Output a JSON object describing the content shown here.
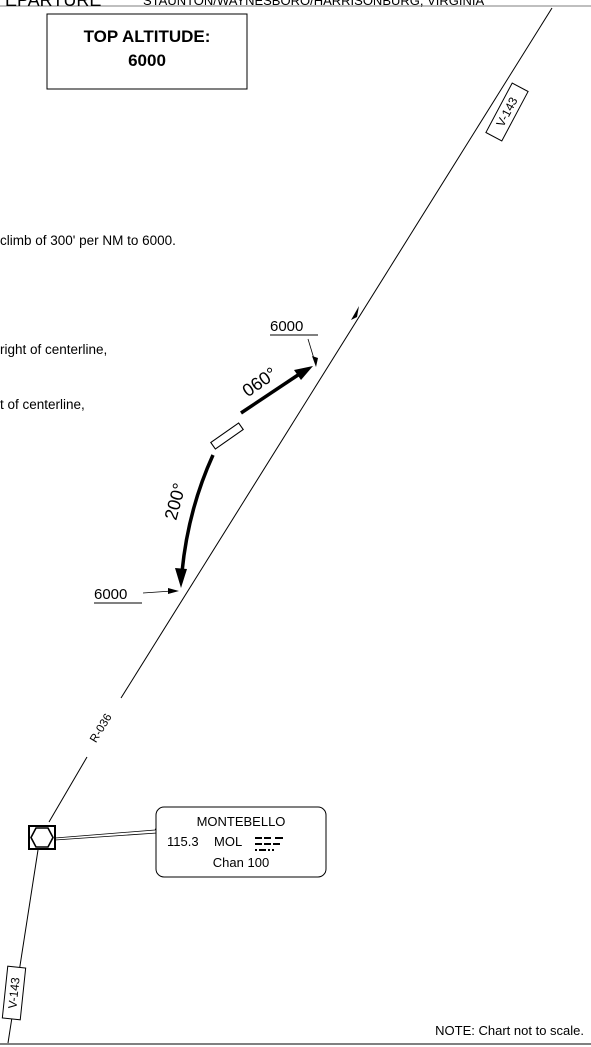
{
  "header": {
    "title_partial": "EPARTURE",
    "location_partial": "STAUNTON/WAYNESBORO/HARRISONBURG, VIRGINIA"
  },
  "top_altitude": {
    "label": "TOP ALTITUDE:",
    "value": "6000"
  },
  "procedure_text": {
    "line1": "climb of 300' per NM to 6000.",
    "line2": "right of centerline,",
    "line3": "t of centerline,"
  },
  "airways": [
    {
      "label": "V-143"
    },
    {
      "label": "V-143"
    }
  ],
  "radial": {
    "label": "R-036"
  },
  "holding": {
    "outbound_course": "060°",
    "inbound_course": "200°"
  },
  "altitudes": {
    "upper": "6000",
    "lower": "6000"
  },
  "navaid": {
    "name": "MONTEBELLO",
    "frequency": "115.3",
    "identifier": "MOL",
    "channel": "Chan 100",
    "icon": "vortac-icon"
  },
  "note": "NOTE: Chart not to scale.",
  "colors": {
    "ink": "#000000",
    "background": "#ffffff"
  }
}
